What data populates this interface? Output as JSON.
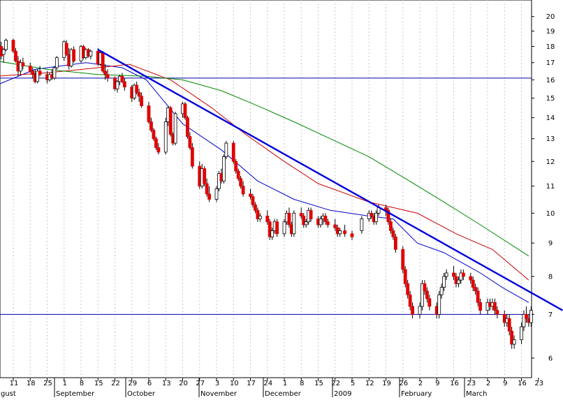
{
  "chart_data": {
    "type": "candlestick",
    "y_scale": "log",
    "ylim": [
      5.6,
      21.2
    ],
    "y_ticks": [
      6,
      7,
      8,
      9,
      10,
      11,
      12,
      13,
      14,
      15,
      16,
      17,
      18,
      19,
      20
    ],
    "x_day_labels": [
      "11",
      "18",
      "25",
      "1",
      "8",
      "15",
      "22",
      "29",
      "6",
      "13",
      "20",
      "27",
      "3",
      "10",
      "17",
      "24",
      "1",
      "8",
      "15",
      "22",
      "5",
      "12",
      "19",
      "26",
      "2",
      "9",
      "16",
      "23",
      "2",
      "9",
      "16",
      "23"
    ],
    "x_month_labels": [
      "gust",
      "September",
      "October",
      "November",
      "December",
      "2009",
      "February",
      "March"
    ],
    "horizontal_levels": [
      16.1,
      7.0
    ],
    "trendline": {
      "start": [
        "2008-09-15",
        17.8
      ],
      "end": [
        "2009-03-26",
        7.1
      ]
    },
    "moving_averages": [
      {
        "color": "#0000cc",
        "points": [
          [
            "2008-08-04",
            15.7
          ],
          [
            "2008-08-20",
            16.6
          ],
          [
            "2008-09-10",
            17.0
          ],
          [
            "2008-09-25",
            16.7
          ],
          [
            "2008-10-05",
            16.0
          ],
          [
            "2008-10-20",
            13.7
          ],
          [
            "2008-11-05",
            12.5
          ],
          [
            "2008-11-20",
            11.2
          ],
          [
            "2008-12-05",
            10.5
          ],
          [
            "2008-12-20",
            10.1
          ],
          [
            "2009-01-05",
            9.9
          ],
          [
            "2009-01-15",
            9.8
          ],
          [
            "2009-01-25",
            9.0
          ],
          [
            "2009-02-05",
            8.7
          ],
          [
            "2009-02-20",
            8.1
          ],
          [
            "2009-03-01",
            7.7
          ],
          [
            "2009-03-12",
            7.3
          ]
        ]
      },
      {
        "color": "#cc0000",
        "points": [
          [
            "2008-08-04",
            16.2
          ],
          [
            "2008-08-25",
            16.4
          ],
          [
            "2008-09-15",
            16.7
          ],
          [
            "2008-09-28",
            16.9
          ],
          [
            "2008-10-15",
            16.0
          ],
          [
            "2008-11-01",
            14.5
          ],
          [
            "2008-11-15",
            13.2
          ],
          [
            "2008-12-01",
            12.0
          ],
          [
            "2008-12-15",
            11.1
          ],
          [
            "2009-01-05",
            10.4
          ],
          [
            "2009-01-25",
            10.0
          ],
          [
            "2009-02-10",
            9.3
          ],
          [
            "2009-02-25",
            8.8
          ],
          [
            "2009-03-12",
            7.9
          ]
        ]
      },
      {
        "color": "#008800",
        "points": [
          [
            "2008-08-04",
            17.1
          ],
          [
            "2008-08-25",
            16.6
          ],
          [
            "2008-09-15",
            16.3
          ],
          [
            "2008-10-05",
            16.2
          ],
          [
            "2008-10-20",
            16.0
          ],
          [
            "2008-11-05",
            15.4
          ],
          [
            "2008-11-20",
            14.6
          ],
          [
            "2008-12-05",
            13.8
          ],
          [
            "2008-12-20",
            13.0
          ],
          [
            "2009-01-05",
            12.2
          ],
          [
            "2009-01-20",
            11.3
          ],
          [
            "2009-02-05",
            10.4
          ],
          [
            "2009-02-20",
            9.6
          ],
          [
            "2009-03-12",
            8.6
          ]
        ]
      }
    ],
    "candles": [
      [
        "2008-08-04",
        17.4,
        17.9,
        16.8,
        17.8
      ],
      [
        "2008-08-05",
        17.8,
        18.2,
        17.5,
        18.1
      ],
      [
        "2008-08-06",
        18.0,
        18.3,
        17.2,
        17.4
      ],
      [
        "2008-08-07",
        17.5,
        17.9,
        17.0,
        17.8
      ],
      [
        "2008-08-08",
        17.8,
        18.5,
        17.7,
        18.4
      ],
      [
        "2008-08-11",
        18.4,
        18.5,
        17.6,
        17.7
      ],
      [
        "2008-08-12",
        17.7,
        17.9,
        17.0,
        17.1
      ],
      [
        "2008-08-13",
        17.1,
        17.4,
        16.2,
        16.5
      ],
      [
        "2008-08-14",
        16.5,
        17.2,
        16.3,
        17.0
      ],
      [
        "2008-08-15",
        17.0,
        17.3,
        16.6,
        16.8
      ],
      [
        "2008-08-18",
        16.8,
        17.0,
        16.4,
        16.5
      ],
      [
        "2008-08-19",
        16.5,
        16.7,
        16.1,
        16.3
      ],
      [
        "2008-08-20",
        16.3,
        16.6,
        15.8,
        15.9
      ],
      [
        "2008-08-21",
        15.9,
        16.6,
        15.8,
        16.5
      ],
      [
        "2008-08-22",
        16.5,
        16.8,
        16.2,
        16.3
      ],
      [
        "2008-08-25",
        16.3,
        16.5,
        15.8,
        16.0
      ],
      [
        "2008-08-26",
        16.0,
        16.4,
        15.9,
        16.3
      ],
      [
        "2008-08-27",
        16.3,
        16.6,
        16.0,
        16.1
      ],
      [
        "2008-08-28",
        16.1,
        16.8,
        16.0,
        16.7
      ],
      [
        "2008-08-29",
        16.7,
        17.4,
        16.6,
        17.3
      ],
      [
        "2008-09-01",
        17.3,
        18.4,
        17.1,
        18.3
      ],
      [
        "2008-09-02",
        18.2,
        18.4,
        17.4,
        17.5
      ],
      [
        "2008-09-03",
        17.5,
        17.9,
        16.6,
        16.8
      ],
      [
        "2008-09-04",
        16.8,
        17.9,
        16.7,
        17.8
      ],
      [
        "2008-09-05",
        17.8,
        18.0,
        17.0,
        17.1
      ],
      [
        "2008-09-08",
        17.1,
        18.1,
        17.0,
        18.0
      ],
      [
        "2008-09-09",
        18.0,
        18.1,
        17.2,
        17.3
      ],
      [
        "2008-09-10",
        17.3,
        17.9,
        17.2,
        17.8
      ],
      [
        "2008-09-11",
        17.8,
        17.9,
        17.3,
        17.4
      ],
      [
        "2008-09-12",
        17.4,
        17.8,
        17.2,
        17.7
      ],
      [
        "2008-09-15",
        17.7,
        17.9,
        16.8,
        16.9
      ],
      [
        "2008-09-16",
        16.9,
        17.7,
        16.8,
        17.6
      ],
      [
        "2008-09-17",
        17.6,
        17.7,
        16.4,
        16.5
      ],
      [
        "2008-09-18",
        16.5,
        16.9,
        16.0,
        16.3
      ],
      [
        "2008-09-19",
        16.3,
        16.6,
        15.9,
        16.1
      ],
      [
        "2008-09-22",
        16.1,
        16.2,
        15.4,
        15.5
      ],
      [
        "2008-09-23",
        15.5,
        16.0,
        15.3,
        15.9
      ],
      [
        "2008-09-24",
        15.9,
        16.3,
        15.7,
        16.2
      ],
      [
        "2008-09-25",
        16.2,
        16.4,
        15.8,
        15.9
      ],
      [
        "2008-09-26",
        15.9,
        16.1,
        15.4,
        15.6
      ],
      [
        "2008-09-29",
        15.6,
        15.7,
        14.8,
        15.0
      ],
      [
        "2008-09-30",
        15.0,
        15.8,
        14.9,
        15.7
      ],
      [
        "2008-10-01",
        15.7,
        15.9,
        15.2,
        15.3
      ],
      [
        "2008-10-02",
        15.3,
        15.5,
        14.8,
        15.1
      ],
      [
        "2008-10-03",
        15.1,
        15.3,
        14.5,
        14.6
      ],
      [
        "2008-10-06",
        14.6,
        14.8,
        13.7,
        13.8
      ],
      [
        "2008-10-07",
        13.8,
        14.0,
        13.3,
        13.4
      ],
      [
        "2008-10-08",
        13.4,
        13.5,
        12.9,
        13.0
      ],
      [
        "2008-10-09",
        13.0,
        13.1,
        12.5,
        12.6
      ],
      [
        "2008-10-10",
        12.6,
        12.8,
        12.3,
        12.4
      ],
      [
        "2008-10-13",
        12.4,
        14.0,
        12.3,
        13.8
      ],
      [
        "2008-10-14",
        13.8,
        14.6,
        13.6,
        14.5
      ],
      [
        "2008-10-15",
        14.5,
        14.6,
        13.1,
        13.2
      ],
      [
        "2008-10-16",
        13.2,
        13.3,
        12.7,
        12.8
      ],
      [
        "2008-10-17",
        12.8,
        14.3,
        12.7,
        14.2
      ],
      [
        "2008-10-20",
        14.2,
        14.8,
        14.0,
        14.7
      ],
      [
        "2008-10-21",
        14.7,
        14.8,
        13.9,
        14.0
      ],
      [
        "2008-10-22",
        14.0,
        14.1,
        13.0,
        13.1
      ],
      [
        "2008-10-23",
        13.1,
        13.3,
        12.5,
        12.6
      ],
      [
        "2008-10-24",
        12.6,
        12.8,
        11.7,
        11.8
      ],
      [
        "2008-10-27",
        11.8,
        12.0,
        10.9,
        11.0
      ],
      [
        "2008-10-28",
        11.0,
        11.9,
        10.9,
        11.7
      ],
      [
        "2008-10-29",
        11.7,
        11.8,
        11.0,
        11.1
      ],
      [
        "2008-10-30",
        11.1,
        11.3,
        10.6,
        10.7
      ],
      [
        "2008-10-31",
        10.7,
        11.0,
        10.4,
        10.5
      ],
      [
        "2008-11-03",
        10.5,
        11.0,
        10.4,
        10.9
      ],
      [
        "2008-11-04",
        10.9,
        11.6,
        10.8,
        11.5
      ],
      [
        "2008-11-05",
        11.5,
        11.7,
        11.1,
        11.2
      ],
      [
        "2008-11-06",
        11.2,
        12.3,
        11.1,
        12.2
      ],
      [
        "2008-11-07",
        12.2,
        12.9,
        12.1,
        12.8
      ],
      [
        "2008-11-10",
        12.8,
        12.9,
        11.9,
        12.0
      ],
      [
        "2008-11-11",
        12.0,
        12.1,
        11.5,
        11.6
      ],
      [
        "2008-11-12",
        11.6,
        11.7,
        11.2,
        11.3
      ],
      [
        "2008-11-13",
        11.3,
        11.4,
        10.9,
        11.0
      ],
      [
        "2008-11-14",
        11.0,
        11.2,
        10.6,
        10.7
      ],
      [
        "2008-11-17",
        10.7,
        10.9,
        10.5,
        10.6
      ],
      [
        "2008-11-18",
        10.6,
        10.7,
        10.2,
        10.3
      ],
      [
        "2008-11-19",
        10.3,
        10.4,
        10.0,
        10.1
      ],
      [
        "2008-11-20",
        10.1,
        10.2,
        9.7,
        9.8
      ],
      [
        "2008-11-21",
        9.8,
        10.0,
        9.7,
        9.9
      ],
      [
        "2008-11-24",
        9.9,
        10.1,
        9.6,
        9.7
      ],
      [
        "2008-11-25",
        9.7,
        9.8,
        9.1,
        9.2
      ],
      [
        "2008-11-26",
        9.2,
        9.5,
        9.1,
        9.4
      ],
      [
        "2008-11-27",
        9.4,
        9.8,
        9.3,
        9.7
      ],
      [
        "2008-11-28",
        9.7,
        9.8,
        9.2,
        9.3
      ],
      [
        "2008-12-01",
        9.3,
        9.8,
        9.2,
        9.7
      ],
      [
        "2008-12-02",
        9.7,
        10.1,
        9.6,
        10.0
      ],
      [
        "2008-12-03",
        10.0,
        10.2,
        9.5,
        9.6
      ],
      [
        "2008-12-04",
        9.6,
        9.7,
        9.2,
        9.3
      ],
      [
        "2008-12-05",
        9.3,
        10.1,
        9.2,
        10.0
      ],
      [
        "2008-12-08",
        10.0,
        10.2,
        9.8,
        9.9
      ],
      [
        "2008-12-09",
        9.9,
        10.0,
        9.5,
        9.6
      ],
      [
        "2008-12-10",
        9.6,
        9.8,
        9.5,
        9.7
      ],
      [
        "2008-12-11",
        9.7,
        10.2,
        9.6,
        10.1
      ],
      [
        "2008-12-12",
        10.1,
        10.2,
        9.7,
        9.8
      ],
      [
        "2008-12-15",
        9.8,
        9.9,
        9.5,
        9.6
      ],
      [
        "2008-12-16",
        9.6,
        9.9,
        9.5,
        9.8
      ],
      [
        "2008-12-17",
        9.8,
        10.0,
        9.6,
        9.9
      ],
      [
        "2008-12-18",
        9.9,
        10.0,
        9.6,
        9.7
      ],
      [
        "2008-12-19",
        9.7,
        9.8,
        9.5,
        9.6
      ],
      [
        "2008-12-22",
        9.6,
        9.8,
        9.4,
        9.5
      ],
      [
        "2008-12-23",
        9.5,
        9.6,
        9.2,
        9.3
      ],
      [
        "2008-12-24",
        9.3,
        9.5,
        9.2,
        9.4
      ],
      [
        "2008-12-26",
        9.4,
        9.6,
        9.2,
        9.3
      ],
      [
        "2008-12-29",
        9.3,
        9.4,
        9.1,
        9.2
      ],
      [
        "2009-01-02",
        9.4,
        9.9,
        9.3,
        9.8
      ],
      [
        "2009-01-05",
        9.8,
        10.1,
        9.7,
        10.0
      ],
      [
        "2009-01-06",
        10.0,
        10.1,
        9.8,
        9.9
      ],
      [
        "2009-01-07",
        9.9,
        10.0,
        9.6,
        9.7
      ],
      [
        "2009-01-08",
        9.7,
        10.1,
        9.6,
        10.0
      ],
      [
        "2009-01-09",
        10.0,
        10.3,
        9.9,
        10.2
      ],
      [
        "2009-01-12",
        10.2,
        10.3,
        9.9,
        10.1
      ],
      [
        "2009-01-13",
        10.1,
        10.2,
        9.6,
        9.7
      ],
      [
        "2009-01-14",
        9.7,
        9.8,
        9.3,
        9.4
      ],
      [
        "2009-01-15",
        9.4,
        9.5,
        9.1,
        9.2
      ],
      [
        "2009-01-16",
        9.2,
        9.3,
        8.7,
        8.8
      ],
      [
        "2009-01-19",
        8.8,
        8.9,
        8.1,
        8.2
      ],
      [
        "2009-01-20",
        8.2,
        8.3,
        7.7,
        7.8
      ],
      [
        "2009-01-21",
        7.8,
        7.9,
        7.4,
        7.5
      ],
      [
        "2009-01-22",
        7.5,
        7.6,
        7.1,
        7.2
      ],
      [
        "2009-01-23",
        7.2,
        7.3,
        6.9,
        7.0
      ],
      [
        "2009-01-26",
        7.0,
        7.3,
        6.9,
        7.2
      ],
      [
        "2009-01-27",
        7.2,
        7.9,
        7.1,
        7.8
      ],
      [
        "2009-01-28",
        7.8,
        7.9,
        7.5,
        7.6
      ],
      [
        "2009-01-29",
        7.6,
        7.7,
        7.3,
        7.4
      ],
      [
        "2009-01-30",
        7.4,
        7.5,
        7.1,
        7.2
      ],
      [
        "2009-02-02",
        7.2,
        7.3,
        6.9,
        7.0
      ],
      [
        "2009-02-03",
        7.0,
        7.6,
        6.9,
        7.5
      ],
      [
        "2009-02-04",
        7.5,
        7.8,
        7.4,
        7.7
      ],
      [
        "2009-02-05",
        7.7,
        8.1,
        7.6,
        8.0
      ],
      [
        "2009-02-06",
        8.0,
        8.2,
        7.9,
        8.1
      ],
      [
        "2009-02-09",
        8.1,
        8.3,
        7.9,
        8.0
      ],
      [
        "2009-02-10",
        8.0,
        8.1,
        7.7,
        7.8
      ],
      [
        "2009-02-11",
        7.8,
        8.0,
        7.7,
        7.9
      ],
      [
        "2009-02-12",
        7.9,
        8.2,
        7.8,
        8.1
      ],
      [
        "2009-02-13",
        8.1,
        8.2,
        7.9,
        8.0
      ],
      [
        "2009-02-16",
        8.0,
        8.1,
        7.8,
        7.9
      ],
      [
        "2009-02-17",
        7.9,
        8.0,
        7.6,
        7.7
      ],
      [
        "2009-02-18",
        7.7,
        7.8,
        7.5,
        7.6
      ],
      [
        "2009-02-19",
        7.6,
        7.7,
        7.2,
        7.3
      ],
      [
        "2009-02-20",
        7.3,
        7.4,
        7.0,
        7.1
      ],
      [
        "2009-02-23",
        7.1,
        7.4,
        7.0,
        7.3
      ],
      [
        "2009-02-24",
        7.3,
        7.4,
        7.1,
        7.2
      ],
      [
        "2009-02-25",
        7.2,
        7.4,
        7.1,
        7.3
      ],
      [
        "2009-02-26",
        7.3,
        7.4,
        7.0,
        7.1
      ],
      [
        "2009-02-27",
        7.1,
        7.2,
        6.9,
        7.0
      ],
      [
        "2009-03-02",
        7.0,
        7.1,
        6.7,
        6.8
      ],
      [
        "2009-03-03",
        6.8,
        7.0,
        6.7,
        6.9
      ],
      [
        "2009-03-04",
        6.9,
        7.0,
        6.5,
        6.6
      ],
      [
        "2009-03-05",
        6.6,
        6.7,
        6.2,
        6.3
      ],
      [
        "2009-03-06",
        6.3,
        6.5,
        6.2,
        6.4
      ],
      [
        "2009-03-09",
        6.4,
        6.8,
        6.3,
        6.7
      ],
      [
        "2009-03-10",
        6.7,
        7.1,
        6.6,
        7.0
      ],
      [
        "2009-03-11",
        7.0,
        7.2,
        6.8,
        6.9
      ],
      [
        "2009-03-12",
        6.9,
        7.0,
        6.7,
        6.8
      ],
      [
        "2009-03-13",
        6.8,
        7.2,
        6.7,
        7.1
      ]
    ]
  }
}
